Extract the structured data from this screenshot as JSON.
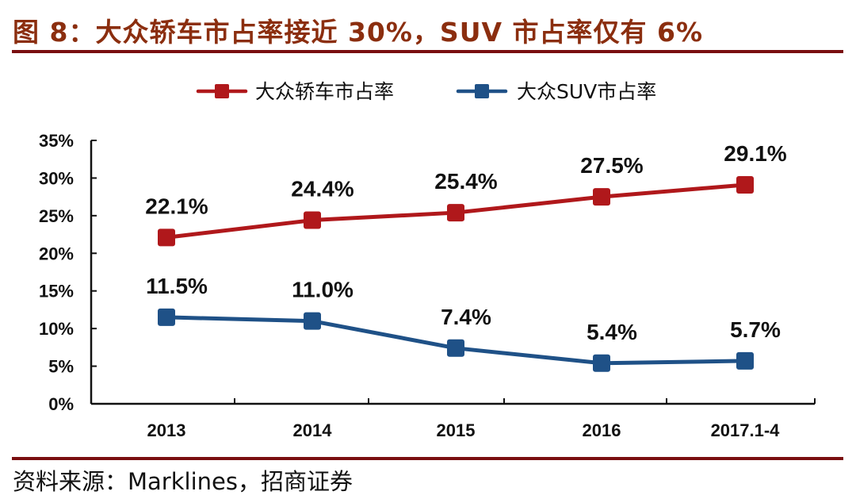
{
  "header": {
    "title": "图 8：大众轿车市占率接近 30%，SUV 市占率仅有 6%"
  },
  "footer": {
    "source": "资料来源：Marklines，招商证券"
  },
  "colors": {
    "title": "#8b2e0f",
    "rule": "#7a0f10",
    "sedan": "#b0181b",
    "suv": "#1f5187",
    "axis": "#111111"
  },
  "chart_data": {
    "type": "line",
    "title": "",
    "xlabel": "",
    "ylabel": "",
    "categories": [
      "2013",
      "2014",
      "2015",
      "2016",
      "2017.1-4"
    ],
    "ylim": [
      0,
      35
    ],
    "yticks": [
      0,
      5,
      10,
      15,
      20,
      25,
      30,
      35
    ],
    "ytick_labels": [
      "0%",
      "5%",
      "10%",
      "15%",
      "20%",
      "25%",
      "30%",
      "35%"
    ],
    "grid": false,
    "legend_position": "top",
    "series": [
      {
        "name": "大众轿车市占率",
        "color": "#b0181b",
        "values": [
          22.1,
          24.4,
          25.4,
          27.5,
          29.1
        ],
        "labels": [
          "22.1%",
          "24.4%",
          "25.4%",
          "27.5%",
          "29.1%"
        ]
      },
      {
        "name": "大众SUV市占率",
        "color": "#1f5187",
        "values": [
          11.5,
          11.0,
          7.4,
          5.4,
          5.7
        ],
        "labels": [
          "11.5%",
          "11.0%",
          "7.4%",
          "5.4%",
          "5.7%"
        ]
      }
    ]
  }
}
